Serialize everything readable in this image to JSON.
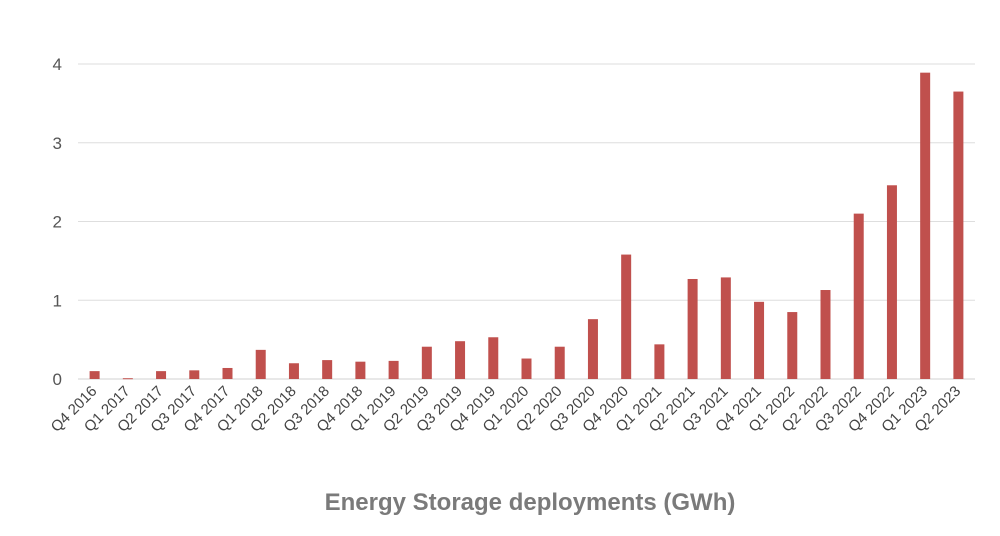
{
  "chart_data": {
    "type": "bar",
    "categories": [
      "Q4 2016",
      "Q1 2017",
      "Q2 2017",
      "Q3 2017",
      "Q4 2017",
      "Q1 2018",
      "Q2 2018",
      "Q3 2018",
      "Q4 2018",
      "Q1 2019",
      "Q2 2019",
      "Q3 2019",
      "Q4 2019",
      "Q1 2020",
      "Q2 2020",
      "Q3 2020",
      "Q4 2020",
      "Q1 2021",
      "Q2 2021",
      "Q3 2021",
      "Q4 2021",
      "Q1 2022",
      "Q2 2022",
      "Q3 2022",
      "Q4 2022",
      "Q1 2023",
      "Q2 2023"
    ],
    "values": [
      0.1,
      0.01,
      0.1,
      0.11,
      0.14,
      0.37,
      0.2,
      0.24,
      0.22,
      0.23,
      0.41,
      0.48,
      0.53,
      0.26,
      0.41,
      0.76,
      1.58,
      0.44,
      1.27,
      1.29,
      0.98,
      0.85,
      1.13,
      2.1,
      2.46,
      3.89,
      3.65
    ],
    "title": "",
    "xlabel": "Energy Storage deployments (GWh)",
    "ylabel": "",
    "ylim": [
      0,
      4
    ],
    "yticks": [
      "0",
      "1",
      "2",
      "3",
      "4"
    ],
    "grid": true,
    "bar_color": "#c0504d"
  }
}
